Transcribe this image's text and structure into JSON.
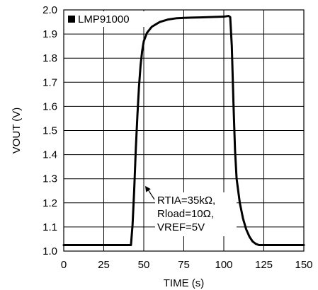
{
  "chart_data": {
    "type": "line",
    "title": "",
    "xlabel": "TIME (s)",
    "ylabel": "VOUT (V)",
    "xlim": [
      0,
      150
    ],
    "ylim": [
      1.0,
      2.0
    ],
    "x_ticks": [
      0,
      25,
      50,
      75,
      100,
      125,
      150
    ],
    "y_ticks": [
      1.0,
      1.1,
      1.2,
      1.3,
      1.4,
      1.5,
      1.6,
      1.7,
      1.8,
      1.9,
      2.0
    ],
    "x_tick_labels": [
      "0",
      "25",
      "50",
      "75",
      "100",
      "125",
      "150"
    ],
    "y_tick_labels": [
      "1.0",
      "1.1",
      "1.2",
      "1.3",
      "1.4",
      "1.5",
      "1.6",
      "1.7",
      "1.8",
      "1.9",
      "2.0"
    ],
    "grid": true,
    "legend": {
      "placement": "top-left",
      "entries": [
        "LMP91000"
      ]
    },
    "annotation": {
      "lines": [
        "RTIA=35kΩ,",
        "Rload=10Ω,",
        "VREF=5V"
      ],
      "arrow_target": {
        "x": 50,
        "y": 1.27
      }
    },
    "series": [
      {
        "name": "LMP91000",
        "color": "#000000",
        "x": [
          0,
          42,
          43,
          44,
          45,
          46,
          47,
          48,
          49,
          50,
          52,
          55,
          60,
          65,
          70,
          75,
          80,
          85,
          90,
          95,
          100,
          103,
          104,
          105,
          106,
          107,
          108,
          110,
          112,
          114,
          116,
          118,
          120,
          122,
          125,
          130,
          150
        ],
        "y": [
          1.025,
          1.025,
          1.11,
          1.25,
          1.42,
          1.56,
          1.68,
          1.77,
          1.83,
          1.87,
          1.905,
          1.93,
          1.95,
          1.96,
          1.965,
          1.967,
          1.968,
          1.969,
          1.97,
          1.971,
          1.972,
          1.975,
          1.97,
          1.85,
          1.62,
          1.42,
          1.3,
          1.2,
          1.135,
          1.09,
          1.06,
          1.04,
          1.03,
          1.025,
          1.025,
          1.025,
          1.025
        ]
      }
    ]
  }
}
